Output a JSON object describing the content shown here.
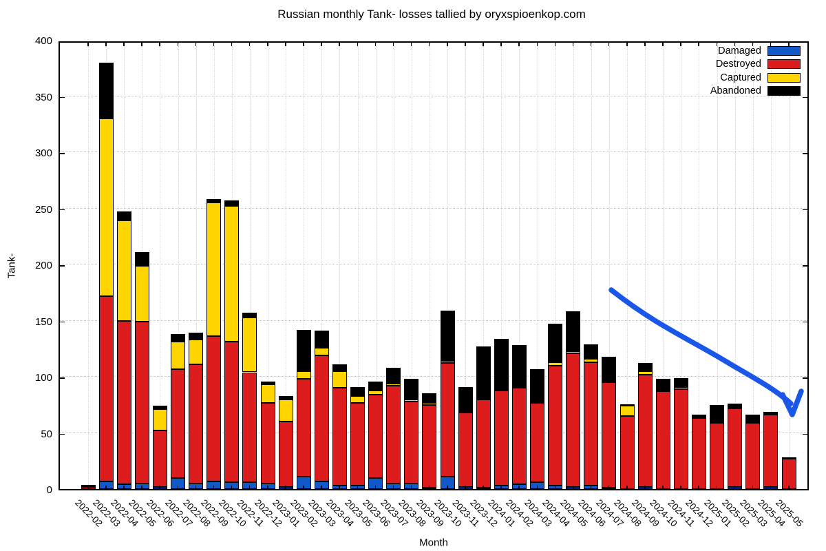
{
  "title": "Russian monthly Tank- losses tallied by oryxspioenkop.com",
  "chart_data": {
    "type": "bar",
    "stacked": true,
    "title": "Russian monthly Tank- losses tallied by oryxspioenkop.com",
    "xlabel": "Month",
    "ylabel": "Tank-",
    "ylim": [
      0,
      400
    ],
    "ytick_step": 50,
    "ytick_labels": [
      "0",
      "50",
      "100",
      "150",
      "200",
      "250",
      "300",
      "350",
      "400"
    ],
    "grid": "dotted",
    "legend_position": "top-right-inside",
    "categories": [
      "2022-02",
      "2022-03",
      "2022-04",
      "2022-05",
      "2022-06",
      "2022-07",
      "2022-08",
      "2022-09",
      "2022-10",
      "2022-11",
      "2022-12",
      "2023-01",
      "2023-02",
      "2023-03",
      "2023-04",
      "2023-05",
      "2023-06",
      "2023-07",
      "2023-08",
      "2023-09",
      "2023-10",
      "2023-11",
      "2023-12",
      "2024-01",
      "2024-02",
      "2024-03",
      "2024-04",
      "2024-05",
      "2024-06",
      "2024-07",
      "2024-08",
      "2024-09",
      "2024-10",
      "2024-11",
      "2024-12",
      "2025-01",
      "2025-02",
      "2025-03",
      "2025-04",
      "2025-05"
    ],
    "series": [
      {
        "name": "Damaged",
        "color": "#1159C8",
        "values": [
          0,
          7,
          4,
          5,
          2,
          10,
          5,
          7,
          6,
          6,
          5,
          2,
          11,
          7,
          3,
          3,
          10,
          5,
          5,
          1,
          11,
          2,
          1,
          3,
          4,
          6,
          3,
          2,
          3,
          1,
          0,
          2,
          0,
          0,
          0,
          0,
          2,
          0,
          2,
          0
        ]
      },
      {
        "name": "Destroyed",
        "color": "#DD1D1D",
        "values": [
          2,
          165,
          146,
          144,
          50,
          97,
          106,
          129,
          125,
          98,
          72,
          58,
          87,
          112,
          87,
          74,
          74,
          87,
          73,
          74,
          101,
          66,
          79,
          85,
          86,
          71,
          107,
          119,
          110,
          94,
          65,
          100,
          87,
          89,
          63,
          59,
          70,
          59,
          64,
          27
        ]
      },
      {
        "name": "Captured",
        "color": "#FFD500",
        "values": [
          0,
          158,
          89,
          50,
          19,
          24,
          22,
          119,
          121,
          49,
          16,
          20,
          7,
          7,
          15,
          6,
          4,
          2,
          2,
          2,
          2,
          1,
          0,
          0,
          0,
          0,
          3,
          2,
          3,
          0,
          9,
          3,
          1,
          2,
          0,
          0,
          0,
          0,
          0,
          0
        ]
      },
      {
        "name": "Abandoned",
        "color": "#000000",
        "values": [
          1,
          50,
          8,
          12,
          3,
          7,
          6,
          3,
          5,
          4,
          3,
          3,
          37,
          15,
          6,
          8,
          8,
          14,
          18,
          8,
          45,
          22,
          47,
          46,
          38,
          30,
          34,
          35,
          13,
          23,
          1,
          7,
          10,
          8,
          3,
          16,
          4,
          7,
          3,
          1
        ]
      }
    ],
    "annotation": {
      "type": "arrow",
      "color": "#1A57E8",
      "description": "hand-drawn blue arrow curving down-right over 2024-07 to 2025-05 indicating declining trend"
    }
  }
}
